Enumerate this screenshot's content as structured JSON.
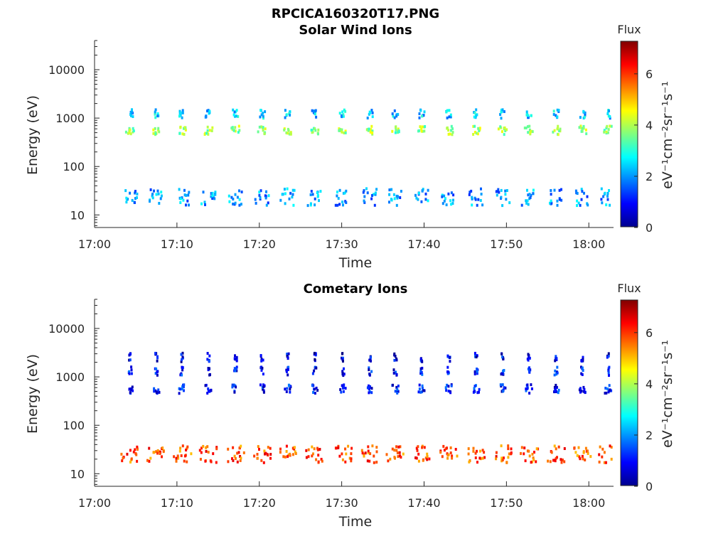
{
  "figure": {
    "title": "RPCICA160320T17.PNG"
  },
  "chart_data": [
    {
      "type": "heatmap",
      "title": "Solar Wind Ions",
      "xlabel": "Time",
      "ylabel": "Energy (eV)",
      "x_ticks": [
        "17:00",
        "17:10",
        "17:20",
        "17:30",
        "17:40",
        "17:50",
        "18:00"
      ],
      "x_range_min": [
        0,
        63
      ],
      "y_ticks": [
        "10",
        "100",
        "1000",
        "10000"
      ],
      "y_scale": "log",
      "y_range_ev": [
        5.5,
        40000
      ],
      "colorbar": {
        "title": "Flux",
        "label": "eV⁻¹cm⁻²sr⁻¹s⁻¹",
        "ticks": [
          "0",
          "2",
          "4",
          "6"
        ],
        "range": [
          0,
          7.3
        ],
        "colormap": "jet"
      },
      "scan_times_min": [
        4.2,
        7.4,
        10.5,
        13.7,
        17.0,
        20.2,
        23.3,
        26.6,
        30.0,
        33.3,
        36.4,
        39.6,
        42.9,
        46.2,
        49.4,
        52.6,
        55.9,
        59.1,
        62.2
      ],
      "bands": [
        {
          "energy_ev": 25,
          "flux": 2.0,
          "width_min": 1.7
        },
        {
          "energy_ev": 600,
          "flux": 3.8,
          "width_min": 1.0
        },
        {
          "energy_ev": 1300,
          "flux": 2.4,
          "width_min": 0.7
        }
      ]
    },
    {
      "type": "heatmap",
      "title": "Cometary Ions",
      "xlabel": "Time",
      "ylabel": "Energy (eV)",
      "x_ticks": [
        "17:00",
        "17:10",
        "17:20",
        "17:30",
        "17:40",
        "17:50",
        "18:00"
      ],
      "x_range_min": [
        0,
        63
      ],
      "y_ticks": [
        "10",
        "100",
        "1000",
        "10000"
      ],
      "y_scale": "log",
      "y_range_ev": [
        5.5,
        40000
      ],
      "colorbar": {
        "title": "Flux",
        "label": "eV⁻¹cm⁻²sr⁻¹s⁻¹",
        "ticks": [
          "0",
          "2",
          "4",
          "6"
        ],
        "range": [
          0,
          7.3
        ],
        "colormap": "jet"
      },
      "scan_times_min": [
        4.2,
        7.4,
        10.5,
        13.7,
        17.0,
        20.2,
        23.3,
        26.6,
        30.0,
        33.3,
        36.4,
        39.6,
        42.9,
        46.2,
        49.4,
        52.6,
        55.9,
        59.1,
        62.2
      ],
      "bands": [
        {
          "energy_ev": 27,
          "flux": 5.8,
          "width_min": 2.2
        },
        {
          "energy_ev": 600,
          "flux": 1.0,
          "width_min": 0.8
        },
        {
          "energy_ev": 1400,
          "flux": 1.0,
          "width_min": 0.4
        },
        {
          "energy_ev": 2700,
          "flux": 0.8,
          "width_min": 0.3
        }
      ]
    }
  ]
}
